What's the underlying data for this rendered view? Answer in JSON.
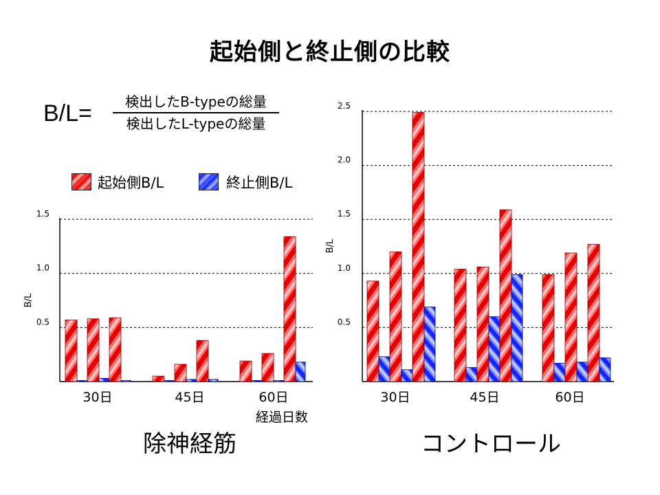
{
  "title": "起始側と終止側の比較",
  "formula": {
    "lhs": "B/L=",
    "numerator": "検出したB-typeの総量",
    "denominator": "検出したL-typeの総量"
  },
  "legend": [
    {
      "label": "起始側B/L",
      "color": "#e60000"
    },
    {
      "label": "終止側B/L",
      "color": "#1a2cff"
    }
  ],
  "panels": {
    "left": {
      "label": "除神経筋"
    },
    "right": {
      "label": "コントロール"
    }
  },
  "chart_data": [
    {
      "type": "bar",
      "categories": [
        "30日",
        "45日",
        "60日"
      ],
      "xlabel": "経過日数",
      "ylabel": "B/L",
      "ylim": [
        0,
        1.5
      ],
      "yticks": [
        "0.5",
        "1.0",
        "1.5"
      ],
      "grid": "dashed horizontal",
      "groups": [
        {
          "label": "30日",
          "pairs": [
            [
              0.57,
              0.01
            ],
            [
              0.58,
              0.03
            ],
            [
              0.59,
              0.01
            ]
          ]
        },
        {
          "label": "45日",
          "pairs": [
            [
              0.05,
              0.01
            ],
            [
              0.16,
              0.02
            ],
            [
              0.38,
              0.02
            ]
          ]
        },
        {
          "label": "60日",
          "pairs": [
            [
              0.19,
              0.01
            ],
            [
              0.26,
              0.01
            ],
            [
              1.34,
              0.18
            ]
          ]
        }
      ]
    },
    {
      "type": "bar",
      "categories": [
        "30日",
        "45日",
        "60日"
      ],
      "xlabel": "",
      "ylabel": "B/L",
      "ylim": [
        0,
        2.5
      ],
      "yticks": [
        "0.5",
        "1.0",
        "1.5",
        "2.0",
        "2.5"
      ],
      "grid": "dashed horizontal",
      "groups": [
        {
          "label": "30日",
          "pairs": [
            [
              0.93,
              0.23
            ],
            [
              1.2,
              0.11
            ],
            [
              2.49,
              0.69
            ]
          ]
        },
        {
          "label": "45日",
          "pairs": [
            [
              1.04,
              0.13
            ],
            [
              1.06,
              0.6
            ],
            [
              1.59,
              0.99
            ]
          ]
        },
        {
          "label": "60日",
          "pairs": [
            [
              0.99,
              0.17
            ],
            [
              1.19,
              0.18
            ],
            [
              1.27,
              0.22
            ]
          ]
        }
      ]
    }
  ]
}
